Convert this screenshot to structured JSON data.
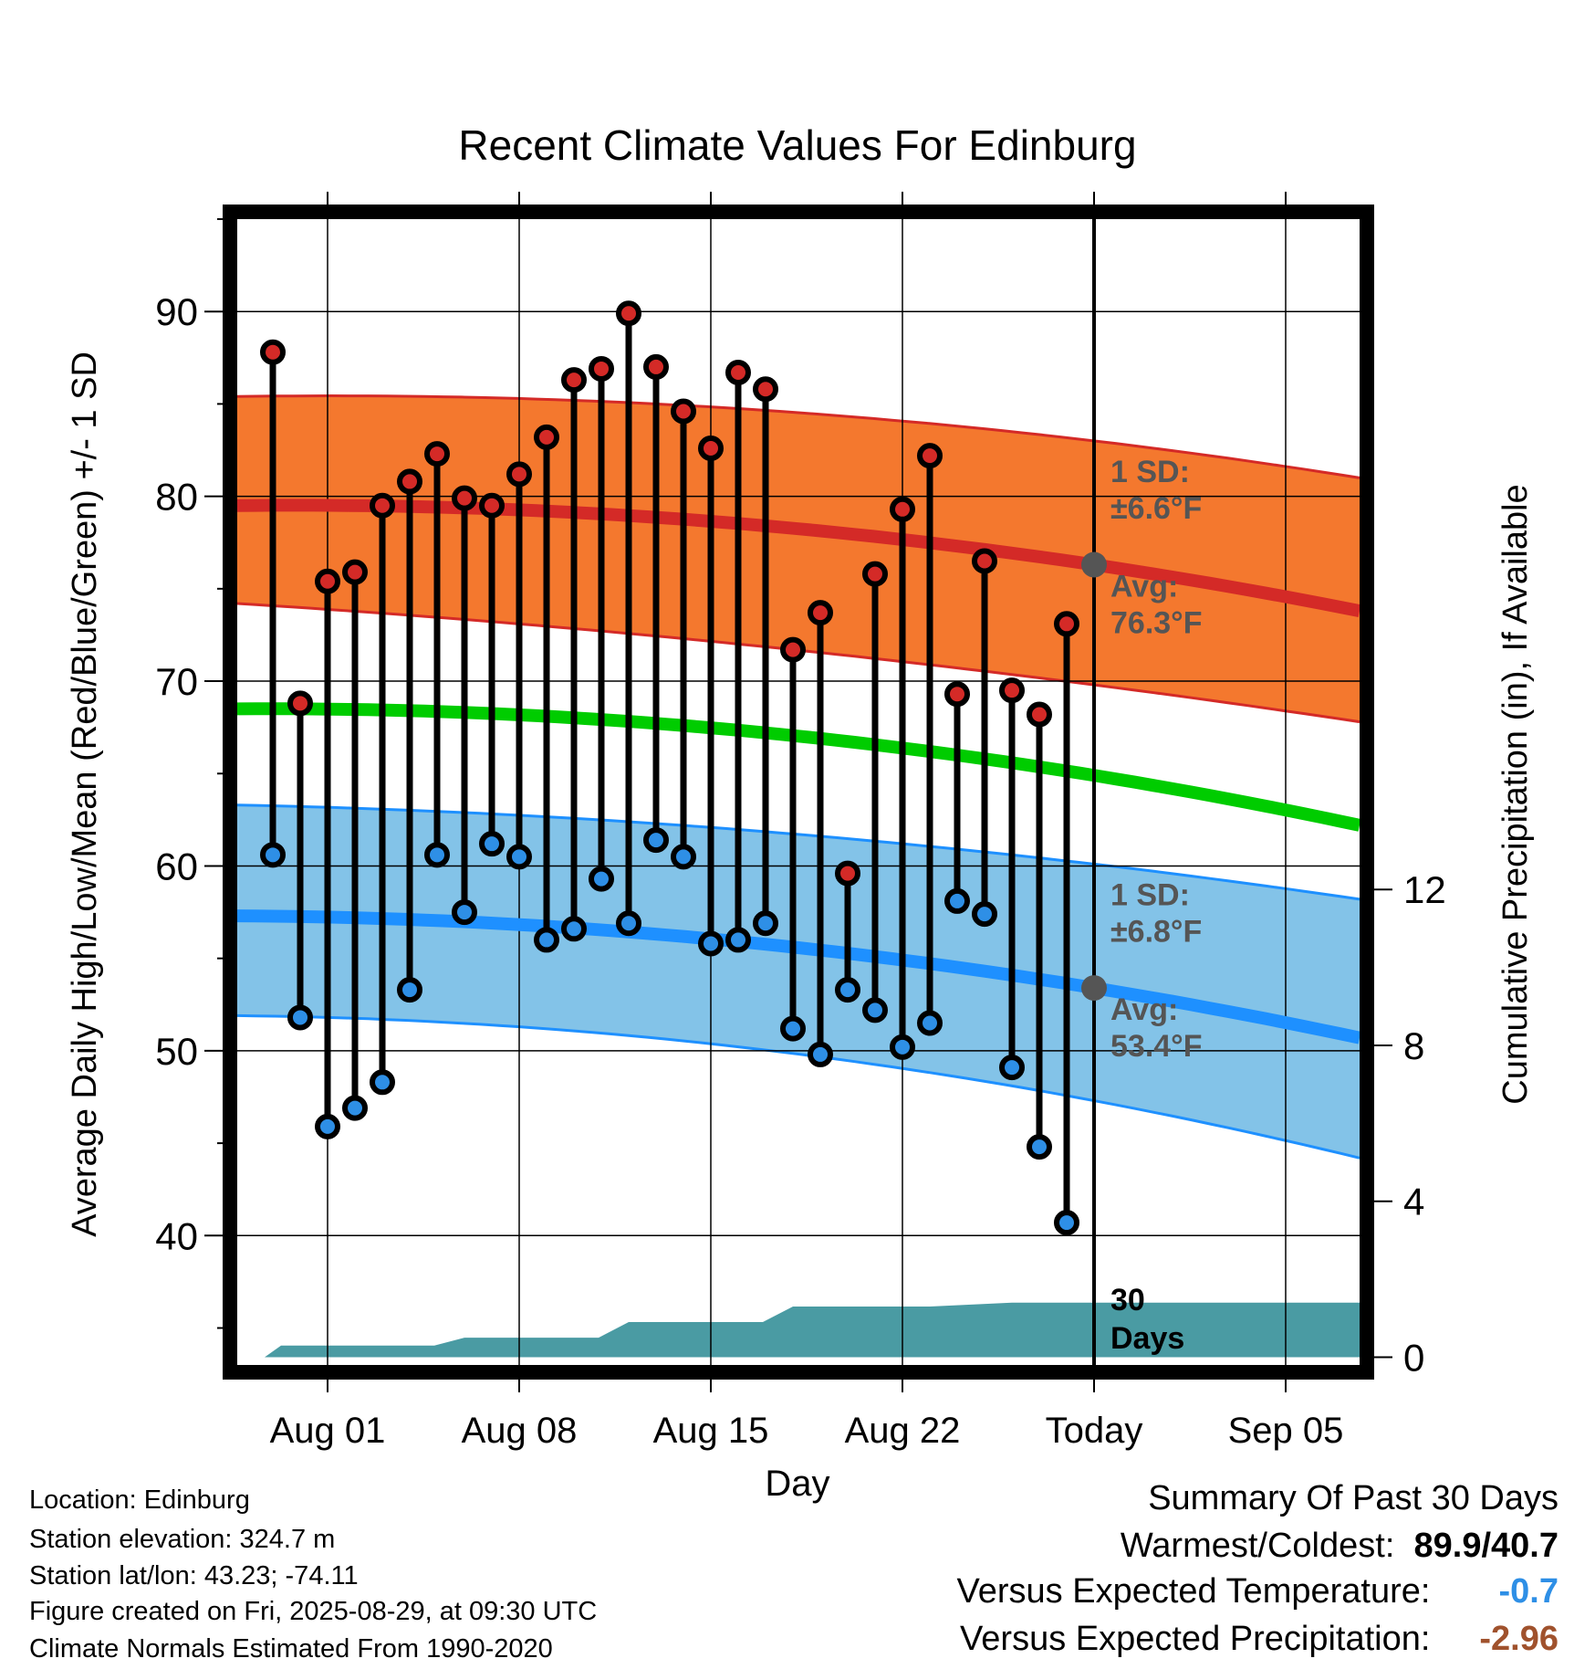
{
  "chart_data": {
    "type": "line",
    "title": "Recent Climate Values For Edinburg",
    "xlabel": "Day",
    "ylabel_left": "Average Daily High/Low/Mean (Red/Blue/Green) +/- 1 SD",
    "ylabel_right": "Cumulative Precipitation (in), If Available",
    "x_ticks": [
      {
        "day": 1,
        "label": "Aug 01"
      },
      {
        "day": 8,
        "label": "Aug 08"
      },
      {
        "day": 15,
        "label": "Aug 15"
      },
      {
        "day": 22,
        "label": "Aug 22"
      },
      {
        "day": 29,
        "label": "Today"
      },
      {
        "day": 36,
        "label": "Sep 05"
      }
    ],
    "xlim": [
      -2.3,
      38.7
    ],
    "ylim": [
      33,
      95
    ],
    "y_ticks_left": [
      40,
      50,
      60,
      70,
      80,
      90
    ],
    "y_ticks_right": [
      0,
      4,
      8,
      12
    ],
    "precip_ylim": [
      -0.2,
      29.2
    ],
    "today_day": 29,
    "days_label_line1": "30",
    "days_label_line2": "Days",
    "daily": {
      "days": [
        -1,
        0,
        1,
        2,
        3,
        4,
        5,
        6,
        7,
        8,
        9,
        10,
        11,
        12,
        13,
        14,
        15,
        16,
        17,
        18,
        19,
        20,
        21,
        22,
        23,
        24,
        25,
        26,
        27,
        28
      ],
      "highs": [
        87.8,
        68.8,
        75.4,
        75.9,
        79.5,
        80.8,
        82.3,
        79.9,
        79.5,
        81.2,
        83.2,
        86.3,
        86.9,
        89.9,
        87.0,
        84.6,
        82.6,
        86.7,
        85.8,
        71.7,
        73.7,
        59.6,
        75.8,
        79.3,
        82.2,
        69.3,
        76.5,
        69.5,
        68.2,
        73.1
      ],
      "lows": [
        60.6,
        51.8,
        45.9,
        46.9,
        48.3,
        53.3,
        60.6,
        57.5,
        61.2,
        60.5,
        56.0,
        56.6,
        59.3,
        56.9,
        61.4,
        60.5,
        55.8,
        56.0,
        56.9,
        51.2,
        49.8,
        53.3,
        52.2,
        50.2,
        51.5,
        58.1,
        57.4,
        49.1,
        44.8,
        40.7
      ]
    },
    "normals": {
      "days": [
        -2.3,
        29,
        38.7
      ],
      "high_avg": [
        79.5,
        76.3,
        73.8
      ],
      "high_upper": [
        85.4,
        83.0,
        81.0
      ],
      "high_lower": [
        74.2,
        69.8,
        67.8
      ],
      "low_avg": [
        57.3,
        53.4,
        50.7
      ],
      "low_upper": [
        63.3,
        60.1,
        58.2
      ],
      "low_lower": [
        51.9,
        47.3,
        44.2
      ],
      "mean_avg": [
        68.5,
        64.9,
        62.2
      ]
    },
    "precip_cumulative": {
      "days": [
        -2.3,
        -1.3,
        -0.7,
        0,
        4.9,
        6,
        10.9,
        12,
        16.9,
        18,
        23,
        26,
        38.7
      ],
      "values": [
        0.0,
        0.0,
        0.3,
        0.3,
        0.3,
        0.5,
        0.5,
        0.9,
        0.9,
        1.3,
        1.3,
        1.4,
        1.4
      ]
    },
    "annotations": {
      "high_sd_line1": "1 SD:",
      "high_sd_line2": "±6.6°F",
      "high_avg_line1": "Avg:",
      "high_avg_line2": "76.3°F",
      "low_sd_line1": "1 SD:",
      "low_sd_line2": "±6.8°F",
      "low_avg_line1": "Avg:",
      "low_avg_line2": "53.4°F"
    },
    "colors": {
      "high_band": "#f4782e",
      "high_line": "#d42a27",
      "low_band": "#83c3e8",
      "low_line": "#1e90ff",
      "mean_line": "#00cc00",
      "precip": "#4a9ba3",
      "high_dot": "#d42a27",
      "low_dot": "#2e8fe6",
      "annotation": "#555555"
    }
  },
  "info": {
    "location": "Location: Edinburg",
    "elevation": "Station elevation: 324.7 m",
    "latlon": "Station lat/lon: 43.23; -74.11",
    "created": "Figure created on Fri, 2025-08-29, at 09:30 UTC",
    "normals": "Climate Normals Estimated From 1990-2020"
  },
  "summary": {
    "title": "Summary Of Past 30 Days",
    "warmest_label": "Warmest/Coldest:",
    "warmest_value": "89.9/40.7",
    "temp_label": "Versus Expected Temperature:",
    "temp_value": "-0.7",
    "temp_color": "#2e8fe6",
    "precip_label": "Versus Expected Precipitation:",
    "precip_value": "-2.96",
    "precip_color": "#a0522d"
  }
}
